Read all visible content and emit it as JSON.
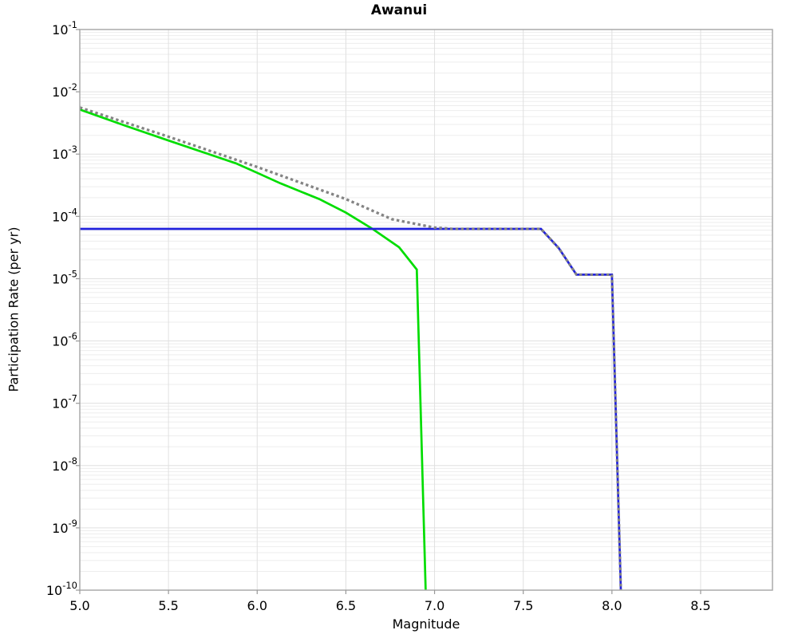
{
  "chart_data": {
    "type": "line",
    "title": "Awanui",
    "xlabel": "Magnitude",
    "ylabel": "Participation Rate (per yr)",
    "xlim": [
      5.0,
      8.905
    ],
    "x_tick_values": [
      5.0,
      5.5,
      6.0,
      6.5,
      7.0,
      7.5,
      8.0,
      8.5
    ],
    "x_tick_labels": [
      "5.0",
      "5.5",
      "6.0",
      "6.5",
      "7.0",
      "7.5",
      "8.0",
      "8.5"
    ],
    "yscale": "log",
    "ylim": [
      1e-10,
      0.1
    ],
    "y_tick_exponents": [
      -1,
      -2,
      -3,
      -4,
      -5,
      -6,
      -7,
      -8,
      -9,
      -10
    ],
    "grid": {
      "minor_color": "#ededed",
      "major_color": "#e0e0e0",
      "border_color": "#aaaaaa",
      "tick_color": "#999999"
    },
    "legend": "none",
    "series": [
      {
        "name": "green-solid-curve",
        "color": "#00dd00",
        "style": "solid",
        "width": 2.7,
        "points": [
          [
            5.0,
            0.0052
          ],
          [
            5.25,
            0.0029
          ],
          [
            5.5,
            0.00165
          ],
          [
            5.75,
            0.00095
          ],
          [
            5.88,
            0.00071
          ],
          [
            6.0,
            0.0005
          ],
          [
            6.13,
            0.00034
          ],
          [
            6.35,
            0.00019
          ],
          [
            6.5,
            0.000115
          ],
          [
            6.65,
            6.3e-05
          ],
          [
            6.8,
            3.2e-05
          ],
          [
            6.9,
            1.4e-05
          ],
          [
            6.95,
            1e-10
          ]
        ]
      },
      {
        "name": "blue-solid-curve",
        "color": "#2222dd",
        "style": "solid",
        "width": 2.7,
        "points": [
          [
            5.0,
            6.3e-05
          ],
          [
            7.6,
            6.3e-05
          ],
          [
            7.7,
            3.1e-05
          ],
          [
            7.8,
            1.16e-05
          ],
          [
            8.0,
            1.16e-05
          ],
          [
            8.05,
            1e-10
          ]
        ]
      },
      {
        "name": "gray-dotted-curve",
        "color": "#848484",
        "style": "dotted",
        "width": 3.3,
        "points": [
          [
            5.0,
            0.0056
          ],
          [
            5.5,
            0.0019
          ],
          [
            6.0,
            0.00062
          ],
          [
            6.5,
            0.00019
          ],
          [
            6.76,
            9e-05
          ],
          [
            7.0,
            6.6e-05
          ],
          [
            7.1,
            6.3e-05
          ],
          [
            7.6,
            6.3e-05
          ],
          [
            7.7,
            3.1e-05
          ],
          [
            7.8,
            1.16e-05
          ],
          [
            8.0,
            1.16e-05
          ],
          [
            8.05,
            1e-10
          ]
        ]
      }
    ]
  }
}
